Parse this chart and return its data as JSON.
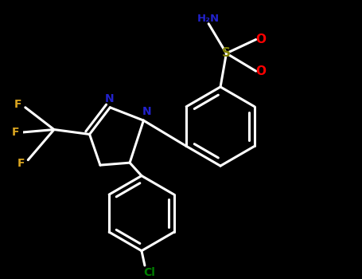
{
  "background_color": "#000000",
  "N_color": "#2222CC",
  "O_color": "#FF0000",
  "S_color": "#808000",
  "F_color": "#DAA520",
  "Cl_color": "#008000",
  "bond_color": "#ffffff",
  "line_width": 2.2,
  "figsize": [
    4.55,
    3.5
  ],
  "dpi": 100,
  "xlim": [
    -2.5,
    5.5
  ],
  "ylim": [
    -3.5,
    3.5
  ]
}
